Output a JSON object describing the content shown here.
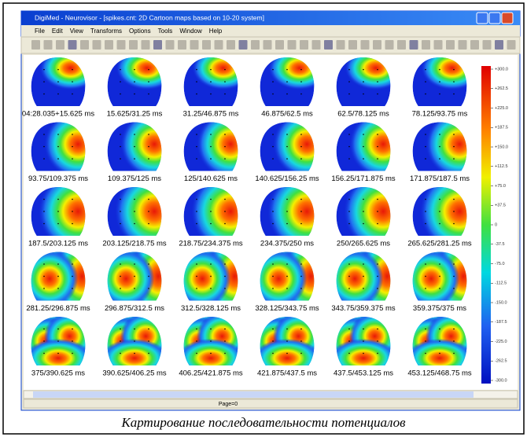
{
  "window": {
    "title": "DigiMed - Neurovisor - [spikes.cnt: 2D Cartoon maps based on 10-20 system]",
    "menu": [
      "File",
      "Edit",
      "View",
      "Transforms",
      "Options",
      "Tools",
      "Window",
      "Help"
    ]
  },
  "maps": {
    "labels": [
      "04:28.035+15.625 ms",
      "15.625/31.25 ms",
      "31.25/46.875 ms",
      "46.875/62.5 ms",
      "62.5/78.125 ms",
      "78.125/93.75 ms",
      "93.75/109.375 ms",
      "109.375/125 ms",
      "125/140.625 ms",
      "140.625/156.25 ms",
      "156.25/171.875 ms",
      "171.875/187.5 ms",
      "187.5/203.125 ms",
      "203.125/218.75 ms",
      "218.75/234.375 ms",
      "234.375/250 ms",
      "250/265.625 ms",
      "265.625/281.25 ms",
      "281.25/296.875 ms",
      "296.875/312.5 ms",
      "312.5/328.125 ms",
      "328.125/343.75 ms",
      "343.75/359.375 ms",
      "359.375/375 ms",
      "375/390.625 ms",
      "390.625/406.25 ms",
      "406.25/421.875 ms",
      "421.875/437.5 ms",
      "437.5/453.125 ms",
      "453.125/468.75 ms"
    ]
  },
  "colorbar": {
    "labels": [
      "+300.0",
      "+262.5",
      "+225.0",
      "+187.5",
      "+150.0",
      "+112.5",
      "+75.0",
      "+37.5",
      "0",
      "-37.5",
      "-75.0",
      "-112.5",
      "-150.0",
      "-187.5",
      "-225.0",
      "-262.5",
      "-300.0"
    ]
  },
  "status": "Page=0",
  "caption": "Картирование последовательности потенциалов"
}
